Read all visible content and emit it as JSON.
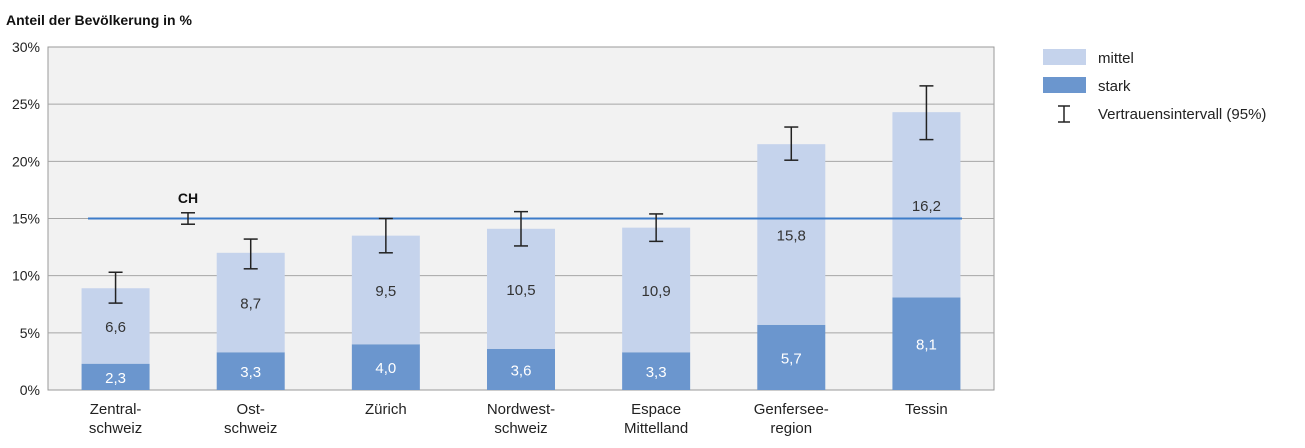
{
  "chart_data": {
    "type": "bar",
    "stacked": true,
    "ytitle": "Anteil der Bevölkerung in %",
    "ylim": [
      0,
      30
    ],
    "yticks": [
      "0%",
      "5%",
      "10%",
      "15%",
      "20%",
      "25%",
      "30%"
    ],
    "grid": true,
    "legend_position": "right",
    "categories": [
      [
        "Zentral-",
        "schweiz"
      ],
      [
        "Ost-",
        "schweiz"
      ],
      [
        "Zürich"
      ],
      [
        "Nordwest-",
        "schweiz"
      ],
      [
        "Espace",
        "Mittelland"
      ],
      [
        "Genfersee-",
        "region"
      ],
      [
        "Tessin"
      ]
    ],
    "series": [
      {
        "name": "stark",
        "color": "#6b96ce",
        "values": [
          2.3,
          3.3,
          4.0,
          3.6,
          3.3,
          5.7,
          8.1
        ],
        "labels": [
          "2,3",
          "3,3",
          "4,0",
          "3,6",
          "3,3",
          "5,7",
          "8,1"
        ]
      },
      {
        "name": "mittel",
        "color": "#c5d3ec",
        "values": [
          6.6,
          8.7,
          9.5,
          10.5,
          10.9,
          15.8,
          16.2
        ],
        "labels": [
          "6,6",
          "8,7",
          "9,5",
          "10,5",
          "10,9",
          "15,8",
          "16,2"
        ]
      }
    ],
    "confidence_interval": {
      "name": "Vertrauensintervall (95%)",
      "low": [
        7.6,
        10.6,
        12.0,
        12.6,
        13.0,
        20.1,
        21.9
      ],
      "high": [
        10.3,
        13.2,
        15.0,
        15.6,
        15.4,
        23.0,
        26.6
      ]
    },
    "reference": {
      "label": "CH",
      "value": 15.0,
      "ci_low": 14.5,
      "ci_high": 15.5,
      "color": "#3d7cc9"
    },
    "legend": [
      "mittel",
      "stark",
      "Vertrauensintervall (95%)"
    ]
  }
}
